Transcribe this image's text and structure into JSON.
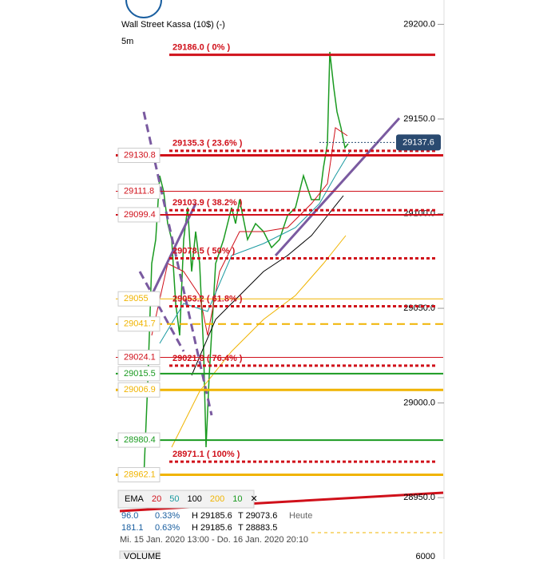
{
  "header": {
    "title": "Wall Street Kassa (10$) (-)",
    "timeframe": "5m"
  },
  "yaxis": {
    "ylim": [
      28945,
      29212
    ],
    "ticks": [
      {
        "value": 29200,
        "label": "29200.0"
      },
      {
        "value": 29150,
        "label": "29150.0"
      },
      {
        "value": 29100,
        "label": "29100.0"
      },
      {
        "value": 29050,
        "label": "29050.0"
      },
      {
        "value": 29000,
        "label": "29000.0"
      },
      {
        "value": 28950,
        "label": "28950.0"
      }
    ]
  },
  "current_price": {
    "value": 29137.6,
    "label": "29137.6"
  },
  "fib_levels": [
    {
      "value": 29186.0,
      "label": "29186.0 ( 0% )"
    },
    {
      "value": 29135.3,
      "label": "29135.3 ( 23.6% )"
    },
    {
      "value": 29103.9,
      "label": "29103.9 ( 38.2% )"
    },
    {
      "value": 29078.5,
      "label": "29078.5 ( 50% )"
    },
    {
      "value": 29053.2,
      "label": "29053.2 ( 61.8% )"
    },
    {
      "value": 29021.8,
      "label": "29021.8 ( 76.4% )"
    },
    {
      "value": 28971.1,
      "label": "28971.1 ( 100% )"
    }
  ],
  "levels": [
    {
      "value": 29130.8,
      "label": "29130.8",
      "color": "#d0101a",
      "width": 3
    },
    {
      "value": 29111.8,
      "label": "29111.8",
      "color": "#d0101a",
      "width": 1
    },
    {
      "value": 29099.4,
      "label": "29099.4",
      "color": "#d0101a",
      "width": 2
    },
    {
      "value": 29055,
      "label": "29055",
      "color": "#f0b400",
      "width": 1
    },
    {
      "value": 29041.7,
      "label": "29041.7",
      "color": "#f0b400",
      "width": 2,
      "dash": true
    },
    {
      "value": 29024.1,
      "label": "29024.1",
      "color": "#d0101a",
      "width": 1
    },
    {
      "value": 29015.5,
      "label": "29015.5",
      "color": "#1a9a20",
      "width": 2
    },
    {
      "value": 29006.9,
      "label": "29006.9",
      "color": "#f0b400",
      "width": 3
    },
    {
      "value": 28980.4,
      "label": "28980.4",
      "color": "#1a9a20",
      "width": 2
    },
    {
      "value": 28962.1,
      "label": "28962.1",
      "color": "#f0b400",
      "width": 3
    }
  ],
  "legend": {
    "title": "EMA",
    "items": [
      {
        "label": "20",
        "color": "#d0101a"
      },
      {
        "label": "50",
        "color": "#1a9aa0"
      },
      {
        "label": "100",
        "color": "#000000"
      },
      {
        "label": "200",
        "color": "#f0b400"
      },
      {
        "label": "10",
        "color": "#1a9a20"
      }
    ],
    "close": "✕"
  },
  "info": [
    {
      "a": "96.0",
      "b": "0.33%",
      "h": "H 29185.6",
      "t": "T 29073.6",
      "extra": "Heute"
    },
    {
      "a": "181.1",
      "b": "0.63%",
      "h": "H 29185.6",
      "t": "T 28883.5"
    }
  ],
  "date_range": "Mi. 15 Jan. 2020 13:00 - Do. 16 Jan. 2020 20:10",
  "volume": {
    "label": "VOLUME",
    "tick": "6000"
  }
}
